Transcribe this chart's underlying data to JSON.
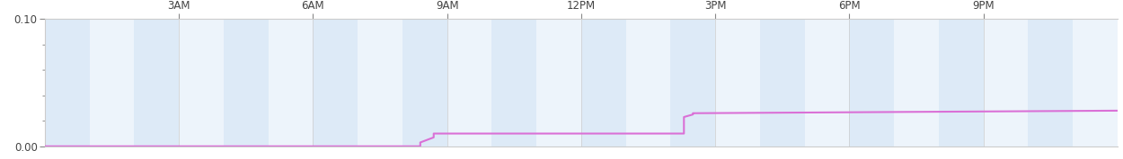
{
  "title": "",
  "ylabel": "",
  "xlabel": "",
  "ylim": [
    0.0,
    0.1
  ],
  "xlim": [
    0,
    24
  ],
  "yticks": [
    0.0,
    0.1
  ],
  "ytick_minor": [
    0.02,
    0.04,
    0.06,
    0.08
  ],
  "xtick_positions": [
    3,
    6,
    9,
    12,
    15,
    18,
    21
  ],
  "xtick_labels": [
    "3AM",
    "6AM",
    "9AM",
    "12PM",
    "3PM",
    "6PM",
    "9PM"
  ],
  "line_color": "#da70d6",
  "line_width": 1.5,
  "background_color": "#ffffff",
  "band_color_dark": "#ddeaf7",
  "band_color_light": "#edf4fb",
  "data_x": [
    0.0,
    8.4,
    8.4,
    8.7,
    8.7,
    14.3,
    14.3,
    14.5,
    14.5,
    24.0
  ],
  "data_y": [
    0.0,
    0.0,
    0.003,
    0.007,
    0.01,
    0.01,
    0.023,
    0.025,
    0.026,
    0.028
  ]
}
